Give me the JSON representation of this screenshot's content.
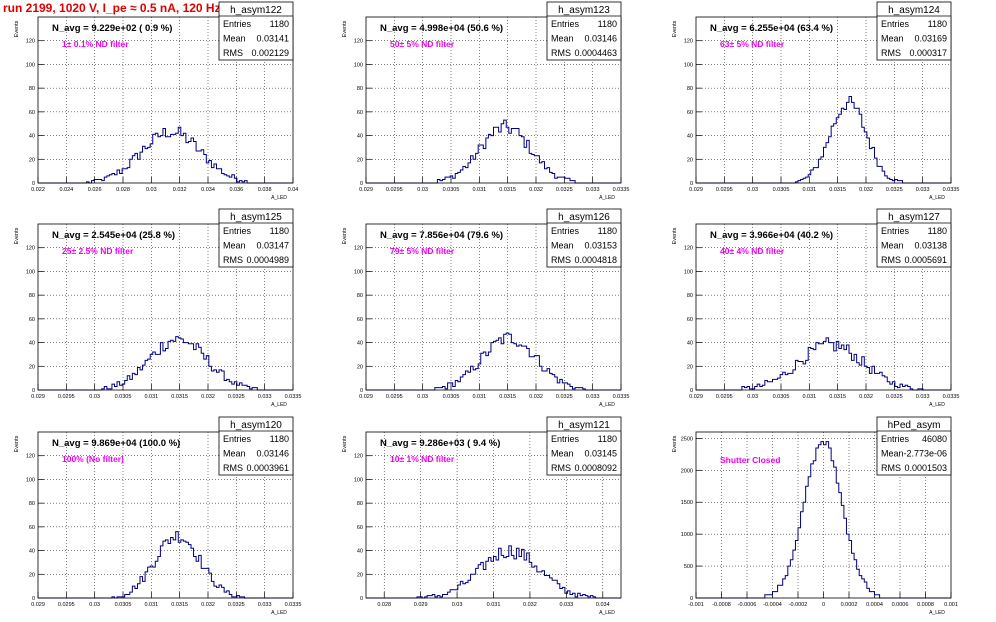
{
  "run_title": "run 2199,  1020 V, I_pe ≈ 0.5 nA, 120 Hz",
  "colors": {
    "hist": "#000080",
    "annot": "#ee00ee",
    "title_red": "#e00000",
    "grid": "#000000"
  },
  "chart_data": [
    {
      "type": "bar",
      "name": "h_asym122",
      "navg": "N_avg = 9.229e+02 ( 0.9 %)",
      "note": "1± 0.1% ND filter",
      "stats": {
        "entries_label": "Entries",
        "entries": "1180",
        "mean_label": "Mean",
        "mean": "0.03141",
        "rms_label": "RMS",
        "rms": "0.002129"
      },
      "xlim": [
        0.022,
        0.04
      ],
      "ylim": [
        0,
        140
      ],
      "xticks": [
        "0.022",
        "0.024",
        "0.026",
        "0.028",
        "0.03",
        "0.032",
        "0.034",
        "0.036",
        "0.038",
        "0.04"
      ],
      "yticks": [
        "0",
        "20",
        "40",
        "60",
        "80",
        "100",
        "120"
      ],
      "ylabel": "Events",
      "xlabel": "A_LED",
      "mu": 0.0314,
      "sigma": 0.0021,
      "peak": 43,
      "xmin": 0.0255,
      "xmax": 0.0375
    },
    {
      "type": "bar",
      "name": "h_asym123",
      "navg": "N_avg = 4.998e+04 (50.6 %)",
      "note": "50± 5% ND filter",
      "stats": {
        "entries_label": "Entries",
        "entries": "1180",
        "mean_label": "Mean",
        "mean": "0.03146",
        "rms_label": "RMS",
        "rms": "0.0004463"
      },
      "xlim": [
        0.029,
        0.0335
      ],
      "ylim": [
        0,
        140
      ],
      "xticks": [
        "0.029",
        "0.0295",
        "0.03",
        "0.0305",
        "0.031",
        "0.0315",
        "0.032",
        "0.0325",
        "0.033",
        "0.0335"
      ],
      "yticks": [
        "0",
        "20",
        "40",
        "60",
        "80",
        "100",
        "120"
      ],
      "ylabel": "Events",
      "xlabel": "A_LED",
      "mu": 0.03146,
      "sigma": 0.00045,
      "peak": 47,
      "xmin": 0.0302,
      "xmax": 0.0328
    },
    {
      "type": "bar",
      "name": "h_asym124",
      "navg": "N_avg = 6.255e+04 (63.4 %)",
      "note": "63± 5% ND filter",
      "stats": {
        "entries_label": "Entries",
        "entries": "1180",
        "mean_label": "Mean",
        "mean": "0.03169",
        "rms_label": "RMS",
        "rms": "0.000317"
      },
      "xlim": [
        0.029,
        0.0335
      ],
      "ylim": [
        0,
        140
      ],
      "xticks": [
        "0.029",
        "0.0295",
        "0.03",
        "0.0305",
        "0.031",
        "0.0315",
        "0.032",
        "0.0325",
        "0.033",
        "0.0335"
      ],
      "yticks": [
        "0",
        "20",
        "40",
        "60",
        "80",
        "100",
        "120"
      ],
      "ylabel": "Events",
      "xlabel": "A_LED",
      "mu": 0.03169,
      "sigma": 0.00032,
      "peak": 68,
      "xmin": 0.0307,
      "xmax": 0.0327
    },
    {
      "type": "bar",
      "name": "h_asym125",
      "navg": "N_avg = 2.545e+04 (25.8 %)",
      "note": "25± 2.5% ND filter",
      "stats": {
        "entries_label": "Entries",
        "entries": "1180",
        "mean_label": "Mean",
        "mean": "0.03147",
        "rms_label": "RMS",
        "rms": "0.0004989"
      },
      "xlim": [
        0.029,
        0.0335
      ],
      "ylim": [
        0,
        140
      ],
      "xticks": [
        "0.029",
        "0.0295",
        "0.03",
        "0.0305",
        "0.031",
        "0.0315",
        "0.032",
        "0.0325",
        "0.033",
        "0.0335"
      ],
      "yticks": [
        "0",
        "20",
        "40",
        "60",
        "80",
        "100",
        "120"
      ],
      "ylabel": "Events",
      "xlabel": "A_LED",
      "mu": 0.03147,
      "sigma": 0.0005,
      "peak": 43,
      "xmin": 0.0301,
      "xmax": 0.0329
    },
    {
      "type": "bar",
      "name": "h_asym126",
      "navg": "N_avg = 7.856e+04 (79.6 %)",
      "note": "79± 5% ND filter",
      "stats": {
        "entries_label": "Entries",
        "entries": "1180",
        "mean_label": "Mean",
        "mean": "0.03153",
        "rms_label": "RMS",
        "rms": "0.0004818"
      },
      "xlim": [
        0.029,
        0.0335
      ],
      "ylim": [
        0,
        140
      ],
      "xticks": [
        "0.029",
        "0.0295",
        "0.03",
        "0.0305",
        "0.031",
        "0.0315",
        "0.032",
        "0.0325",
        "0.033",
        "0.0335"
      ],
      "yticks": [
        "0",
        "20",
        "40",
        "60",
        "80",
        "100",
        "120"
      ],
      "ylabel": "Events",
      "xlabel": "A_LED",
      "mu": 0.03153,
      "sigma": 0.00048,
      "peak": 44,
      "xmin": 0.0302,
      "xmax": 0.0329
    },
    {
      "type": "bar",
      "name": "h_asym127",
      "navg": "N_avg = 3.966e+04 (40.2 %)",
      "note": "40± 4% ND filter",
      "stats": {
        "entries_label": "Entries",
        "entries": "1180",
        "mean_label": "Mean",
        "mean": "0.03138",
        "rms_label": "RMS",
        "rms": "0.0005691"
      },
      "xlim": [
        0.029,
        0.0335
      ],
      "ylim": [
        0,
        140
      ],
      "xticks": [
        "0.029",
        "0.0295",
        "0.03",
        "0.0305",
        "0.031",
        "0.0315",
        "0.032",
        "0.0325",
        "0.033",
        "0.0335"
      ],
      "yticks": [
        "0",
        "20",
        "40",
        "60",
        "80",
        "100",
        "120"
      ],
      "ylabel": "Events",
      "xlabel": "A_LED",
      "mu": 0.03138,
      "sigma": 0.00057,
      "peak": 38,
      "xmin": 0.0298,
      "xmax": 0.033
    },
    {
      "type": "bar",
      "name": "h_asym120",
      "navg": "N_avg = 9.869e+04 (100.0 %)",
      "note": "100% (No filter)",
      "stats": {
        "entries_label": "Entries",
        "entries": "1180",
        "mean_label": "Mean",
        "mean": "0.03146",
        "rms_label": "RMS",
        "rms": "0.0003961"
      },
      "xlim": [
        0.029,
        0.0335
      ],
      "ylim": [
        0,
        140
      ],
      "xticks": [
        "0.029",
        "0.0295",
        "0.03",
        "0.0305",
        "0.031",
        "0.0315",
        "0.032",
        "0.0325",
        "0.033",
        "0.0335"
      ],
      "yticks": [
        "0",
        "20",
        "40",
        "60",
        "80",
        "100",
        "120"
      ],
      "ylabel": "Events",
      "xlabel": "A_LED",
      "mu": 0.03146,
      "sigma": 0.0004,
      "peak": 53,
      "xmin": 0.0303,
      "xmax": 0.0327
    },
    {
      "type": "bar",
      "name": "h_asym121",
      "navg": "N_avg = 9.286e+03 ( 9.4 %)",
      "note": "10± 1% ND filter",
      "stats": {
        "entries_label": "Entries",
        "entries": "1180",
        "mean_label": "Mean",
        "mean": "0.03145",
        "rms_label": "RMS",
        "rms": "0.0008092"
      },
      "xlim": [
        0.0275,
        0.0345
      ],
      "ylim": [
        0,
        140
      ],
      "xticks": [
        "0.028",
        "0.029",
        "0.03",
        "0.031",
        "0.032",
        "0.033",
        "0.034"
      ],
      "yticks": [
        "0",
        "20",
        "40",
        "60",
        "80",
        "100",
        "120"
      ],
      "ylabel": "Events",
      "xlabel": "A_LED",
      "mu": 0.03145,
      "sigma": 0.00081,
      "peak": 40,
      "xmin": 0.0289,
      "xmax": 0.0339
    },
    {
      "type": "bar",
      "name": "hPed_asym",
      "navg": "",
      "note": "Shutter Closed",
      "stats": {
        "entries_label": "Entries",
        "entries": "46080",
        "mean_label": "Mean",
        "mean": "-2.773e-06",
        "rms_label": "RMS",
        "rms": "0.0001503"
      },
      "xlim": [
        -0.001,
        0.001
      ],
      "ylim": [
        0,
        2600
      ],
      "xticks": [
        "-0.001",
        "-0.0008",
        "-0.0006",
        "-0.0004",
        "-0.0002",
        "0",
        "0.0002",
        "0.0004",
        "0.0006",
        "0.0008",
        "0.001"
      ],
      "yticks": [
        "0",
        "500",
        "1000",
        "1500",
        "2000",
        "2500"
      ],
      "ylabel": "Events",
      "xlabel": "A_LED",
      "mu": -2.8e-06,
      "sigma": 0.00015,
      "peak": 2450,
      "xmin": -0.0006,
      "xmax": 0.0006
    }
  ]
}
